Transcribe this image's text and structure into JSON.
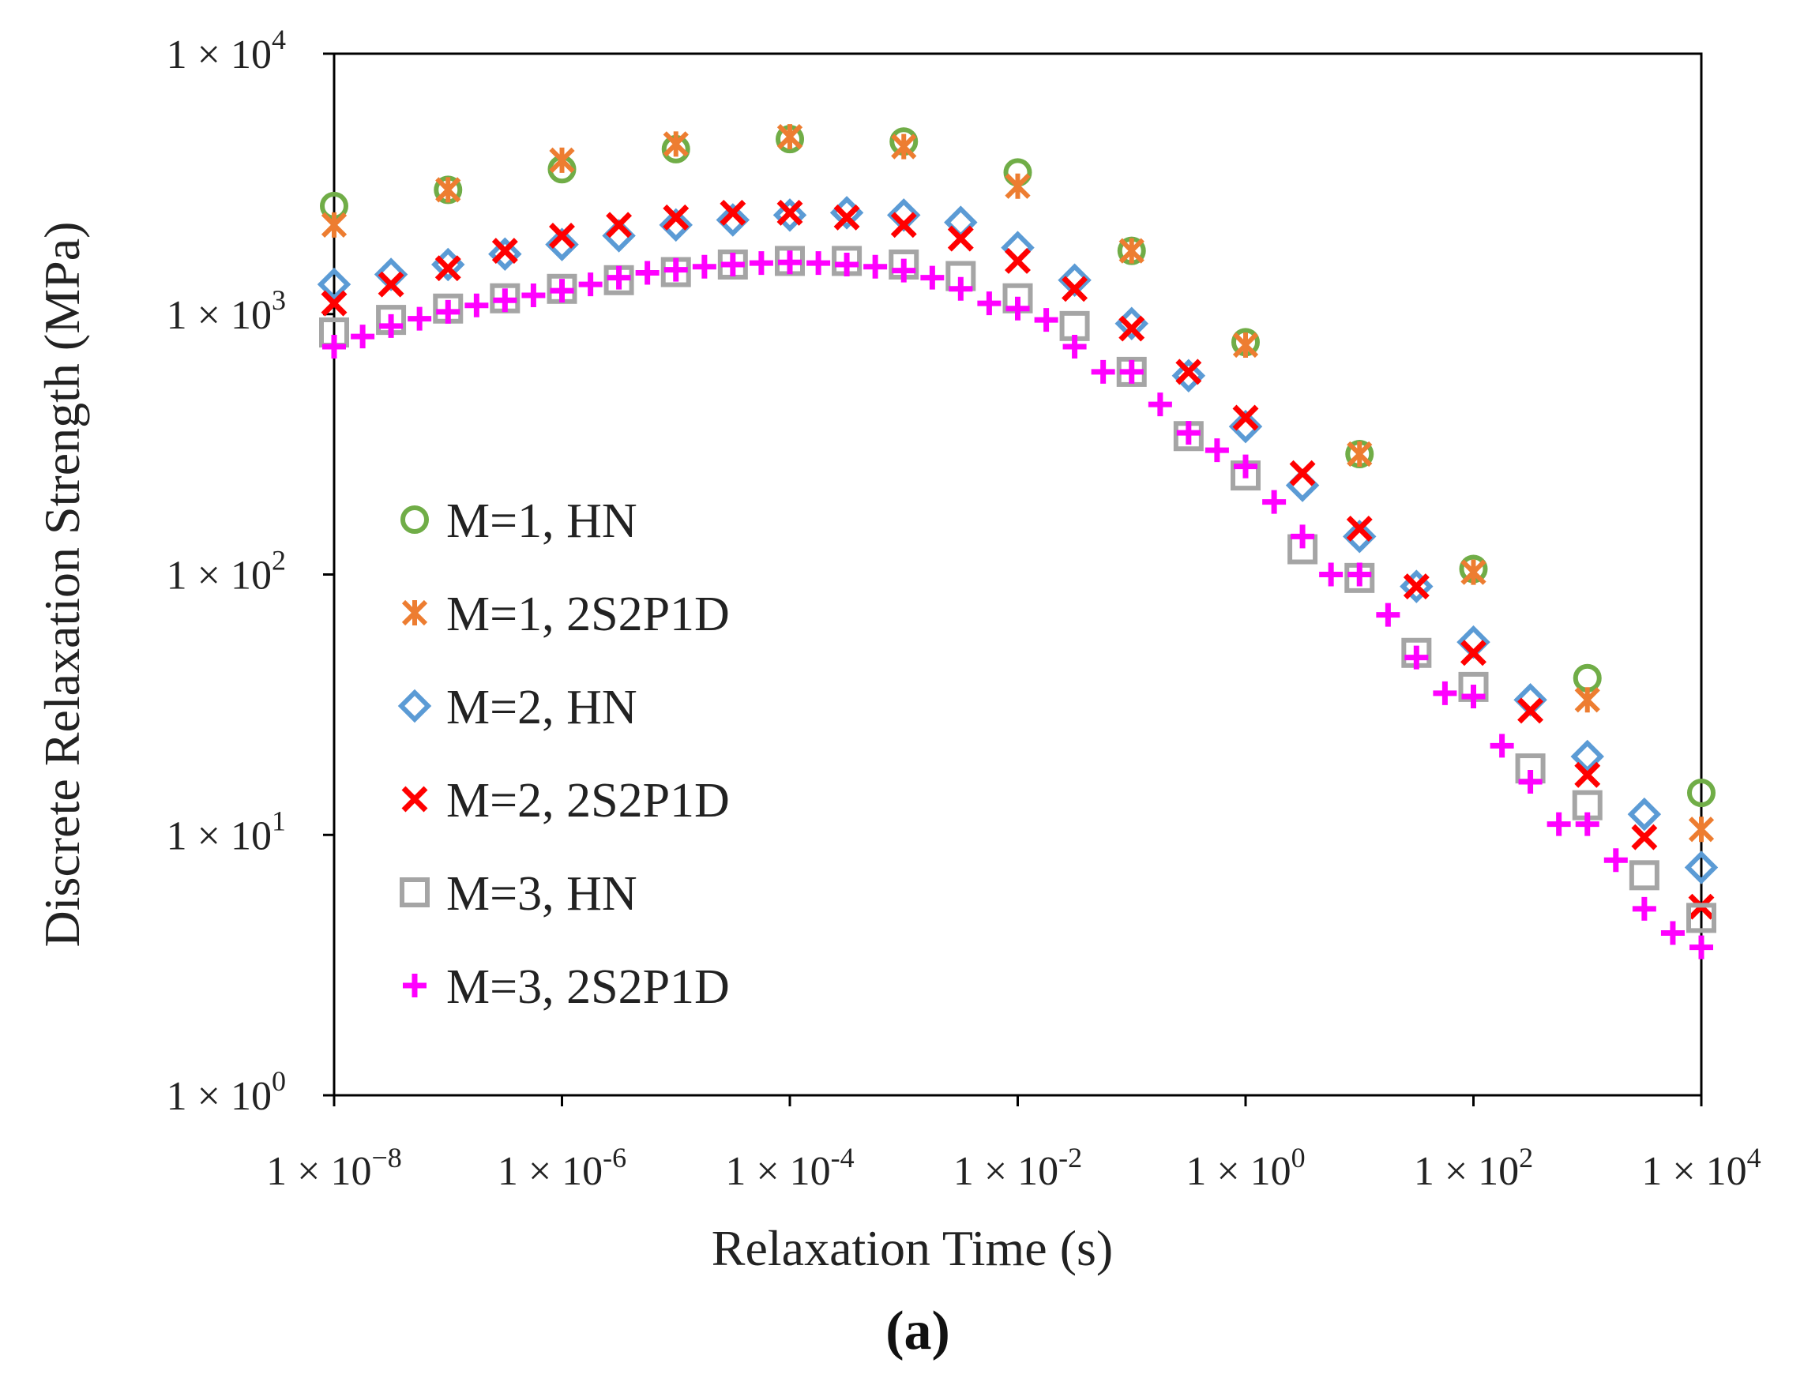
{
  "chart_data": {
    "type": "scatter",
    "title": "",
    "caption": "(a)",
    "xlabel": "Relaxation Time (s)",
    "ylabel": "Discrete Relaxation Strength (MPa)",
    "xscale": "log",
    "yscale": "log",
    "xlim": [
      1e-08,
      10000.0
    ],
    "ylim": [
      1,
      10000
    ],
    "x_ticks": [
      {
        "value": 1e-08,
        "mant": "1 × 10",
        "exp": "−8"
      },
      {
        "value": 1e-06,
        "mant": "1 × 10",
        "exp": "-6"
      },
      {
        "value": 0.0001,
        "mant": "1 × 10",
        "exp": "-4"
      },
      {
        "value": 0.01,
        "mant": "1 × 10",
        "exp": "-2"
      },
      {
        "value": 1,
        "mant": "1 × 10",
        "exp": "0"
      },
      {
        "value": 100,
        "mant": "1 × 10",
        "exp": "2"
      },
      {
        "value": 10000,
        "mant": "1 × 10",
        "exp": "4"
      }
    ],
    "y_ticks": [
      {
        "value": 1,
        "mant": "1 × 10",
        "exp": "0"
      },
      {
        "value": 10,
        "mant": "1 × 10",
        "exp": "1"
      },
      {
        "value": 100,
        "mant": "1 × 10",
        "exp": "2"
      },
      {
        "value": 1000,
        "mant": "1 × 10",
        "exp": "3"
      },
      {
        "value": 10000,
        "mant": "1 × 10",
        "exp": "4"
      }
    ],
    "grid": false,
    "legend_position": "center-left",
    "series": [
      {
        "name": "M=1, HN",
        "marker": "circle",
        "color": "#70ad47",
        "x": [
          1e-08,
          1e-07,
          1e-06,
          1e-05,
          0.0001,
          0.001,
          0.01,
          0.1,
          1,
          10,
          100,
          1000,
          10000
        ],
        "y": [
          2600,
          3000,
          3600,
          4300,
          4700,
          4600,
          3500,
          1750,
          780,
          290,
          105,
          40,
          14.5
        ]
      },
      {
        "name": "M=1, 2S2P1D",
        "marker": "asterisk",
        "color": "#ed7d31",
        "x": [
          1e-08,
          1e-07,
          1e-06,
          1e-05,
          0.0001,
          0.001,
          0.01,
          0.1,
          1,
          10,
          100,
          1000,
          10000
        ],
        "y": [
          2200,
          3000,
          3900,
          4500,
          4800,
          4400,
          3100,
          1750,
          760,
          290,
          102,
          33,
          10.5
        ]
      },
      {
        "name": "M=2, HN",
        "marker": "diamond",
        "color": "#5b9bd5",
        "x": [
          1e-08,
          3.16e-08,
          1e-07,
          3.16e-07,
          1e-06,
          3.16e-06,
          1e-05,
          3.16e-05,
          0.0001,
          0.000316,
          0.001,
          0.00316,
          0.01,
          0.0316,
          0.1,
          0.316,
          1,
          3.16,
          10,
          31.6,
          100,
          316,
          1000,
          3162,
          10000
        ],
        "y": [
          1300,
          1420,
          1550,
          1700,
          1850,
          2000,
          2200,
          2300,
          2400,
          2450,
          2400,
          2250,
          1800,
          1350,
          920,
          580,
          370,
          220,
          140,
          90,
          55,
          33,
          20,
          12,
          7.5
        ]
      },
      {
        "name": "M=2, 2S2P1D",
        "marker": "x",
        "color": "#ff0000",
        "x": [
          1e-08,
          3.16e-08,
          1e-07,
          3.16e-07,
          1e-06,
          3.16e-06,
          1e-05,
          3.16e-05,
          0.0001,
          0.000316,
          0.001,
          0.00316,
          0.01,
          0.0316,
          0.1,
          0.316,
          1,
          3.16,
          10,
          31.6,
          100,
          316,
          1000,
          3162,
          10000
        ],
        "y": [
          1100,
          1300,
          1500,
          1750,
          2000,
          2200,
          2350,
          2450,
          2450,
          2350,
          2200,
          1950,
          1600,
          1250,
          880,
          600,
          400,
          245,
          150,
          90,
          50,
          30,
          17,
          9.8,
          5.3
        ]
      },
      {
        "name": "M=3, HN",
        "marker": "square",
        "color": "#a5a5a5",
        "x": [
          1e-08,
          3.16e-08,
          1e-07,
          3.16e-07,
          1e-06,
          3.16e-06,
          1e-05,
          3.16e-05,
          0.0001,
          0.000316,
          0.001,
          0.00316,
          0.01,
          0.0316,
          0.1,
          0.316,
          1,
          3.16,
          10,
          31.6,
          100,
          316,
          1000,
          3162,
          10000
        ],
        "y": [
          850,
          950,
          1050,
          1150,
          1250,
          1350,
          1450,
          1550,
          1600,
          1600,
          1550,
          1400,
          1150,
          900,
          600,
          340,
          240,
          125,
          97,
          50,
          37,
          18,
          13,
          7,
          4.8
        ]
      },
      {
        "name": "M=3, 2S2P1D",
        "marker": "plus",
        "color": "#ff00ff",
        "x": [
          1e-08,
          1.78e-08,
          3.16e-08,
          5.62e-08,
          1e-07,
          1.78e-07,
          3.16e-07,
          5.62e-07,
          1e-06,
          1.78e-06,
          3.16e-06,
          5.62e-06,
          1e-05,
          1.78e-05,
          3.16e-05,
          5.62e-05,
          0.0001,
          0.000178,
          0.000316,
          0.000562,
          0.001,
          0.00178,
          0.00316,
          0.00562,
          0.01,
          0.0178,
          0.0316,
          0.0562,
          0.1,
          0.178,
          0.316,
          0.562,
          1,
          1.78,
          3.16,
          5.62,
          10,
          17.8,
          31.6,
          56.2,
          100,
          178,
          316,
          562,
          1000,
          1778,
          3162,
          5623,
          10000
        ],
        "y": [
          750,
          820,
          900,
          960,
          1020,
          1080,
          1130,
          1180,
          1230,
          1300,
          1380,
          1440,
          1480,
          1520,
          1550,
          1570,
          1580,
          1570,
          1550,
          1520,
          1470,
          1380,
          1250,
          1100,
          1050,
          950,
          750,
          600,
          600,
          450,
          350,
          300,
          260,
          190,
          140,
          100,
          100,
          70,
          48,
          35,
          34,
          22,
          16,
          11,
          11,
          8,
          5.2,
          4.2,
          3.7
        ]
      }
    ]
  }
}
